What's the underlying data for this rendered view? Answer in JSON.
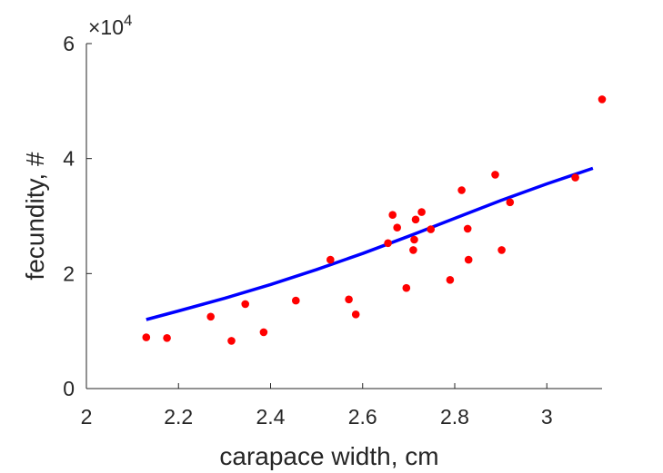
{
  "chart_data": {
    "type": "scatter",
    "xlabel": "carapace width, cm",
    "ylabel": "fecundity, #",
    "xlim": [
      2,
      3.12
    ],
    "ylim": [
      0,
      6
    ],
    "y_multiplier": "×10",
    "y_multiplier_exponent": "4",
    "x_ticks": [
      {
        "value": 2,
        "label": "2"
      },
      {
        "value": 2.2,
        "label": "2.2"
      },
      {
        "value": 2.4,
        "label": "2.4"
      },
      {
        "value": 2.6,
        "label": "2.6"
      },
      {
        "value": 2.8,
        "label": "2.8"
      },
      {
        "value": 3,
        "label": "3"
      }
    ],
    "y_ticks": [
      {
        "value": 0,
        "label": "0"
      },
      {
        "value": 2,
        "label": "2"
      },
      {
        "value": 4,
        "label": "4"
      },
      {
        "value": 6,
        "label": "6"
      }
    ],
    "points_color": "#ff0000",
    "fit_color": "#0000ff",
    "points": [
      [
        2.13,
        0.89
      ],
      [
        2.175,
        0.88
      ],
      [
        2.27,
        1.25
      ],
      [
        2.315,
        0.83
      ],
      [
        2.345,
        1.47
      ],
      [
        2.385,
        0.98
      ],
      [
        2.455,
        1.53
      ],
      [
        2.53,
        2.24
      ],
      [
        2.57,
        1.55
      ],
      [
        2.585,
        1.29
      ],
      [
        2.655,
        2.53
      ],
      [
        2.665,
        3.02
      ],
      [
        2.675,
        2.8
      ],
      [
        2.695,
        1.75
      ],
      [
        2.71,
        2.41
      ],
      [
        2.712,
        2.59
      ],
      [
        2.715,
        2.94
      ],
      [
        2.728,
        3.07
      ],
      [
        2.748,
        2.77
      ],
      [
        2.79,
        1.89
      ],
      [
        2.815,
        3.45
      ],
      [
        2.828,
        2.78
      ],
      [
        2.83,
        2.24
      ],
      [
        2.888,
        3.72
      ],
      [
        2.902,
        2.41
      ],
      [
        2.92,
        3.24
      ],
      [
        3.062,
        3.67
      ],
      [
        3.12,
        5.03
      ]
    ],
    "fit": [
      [
        2.13,
        1.2
      ],
      [
        2.2,
        1.35
      ],
      [
        2.3,
        1.57
      ],
      [
        2.4,
        1.81
      ],
      [
        2.5,
        2.07
      ],
      [
        2.6,
        2.35
      ],
      [
        2.7,
        2.65
      ],
      [
        2.8,
        2.96
      ],
      [
        2.9,
        3.27
      ],
      [
        3.0,
        3.56
      ],
      [
        3.1,
        3.83
      ]
    ]
  }
}
